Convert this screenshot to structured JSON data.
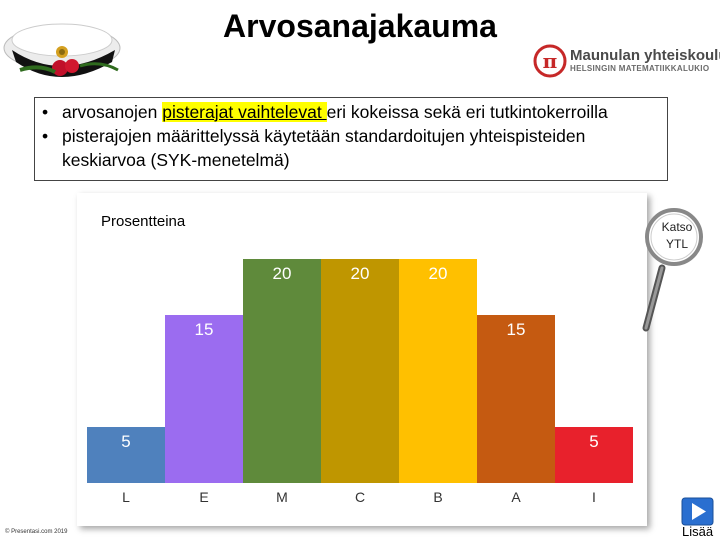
{
  "slide": {
    "title": "Arvosanajakauma",
    "logo": {
      "name": "Maunulan yhteiskoulu",
      "subtitle": "HELSINGIN MATEMATIIKKALUKIO"
    },
    "bullets": [
      {
        "before": "arvosanojen ",
        "highlight": "pisterajat vaihtelevat ",
        "after": "eri kokeissa sekä eri tutkintokerroilla"
      },
      {
        "line1": "pisterajojen määrittelyssä käytetään standardoitujen yhteispisteiden",
        "line2": "keskiarvoa (SYK-menetelmä)"
      }
    ],
    "callout": {
      "line1": "Katso",
      "line2": "YTL"
    },
    "copyright": "© Presentasi.com 2019",
    "nav": {
      "label": "Lisää"
    }
  },
  "chart_data": {
    "type": "bar",
    "title": "Prosentteina",
    "categories": [
      "L",
      "E",
      "M",
      "C",
      "B",
      "A",
      "I"
    ],
    "values": [
      5,
      15,
      20,
      20,
      20,
      15,
      5
    ],
    "colors": [
      "#4f81bd",
      "#9b6cf0",
      "#5f8a3b",
      "#bf9600",
      "#ffc000",
      "#c55a11",
      "#e8212c"
    ],
    "ylim": [
      0,
      20
    ],
    "grid": false,
    "legend": false
  }
}
